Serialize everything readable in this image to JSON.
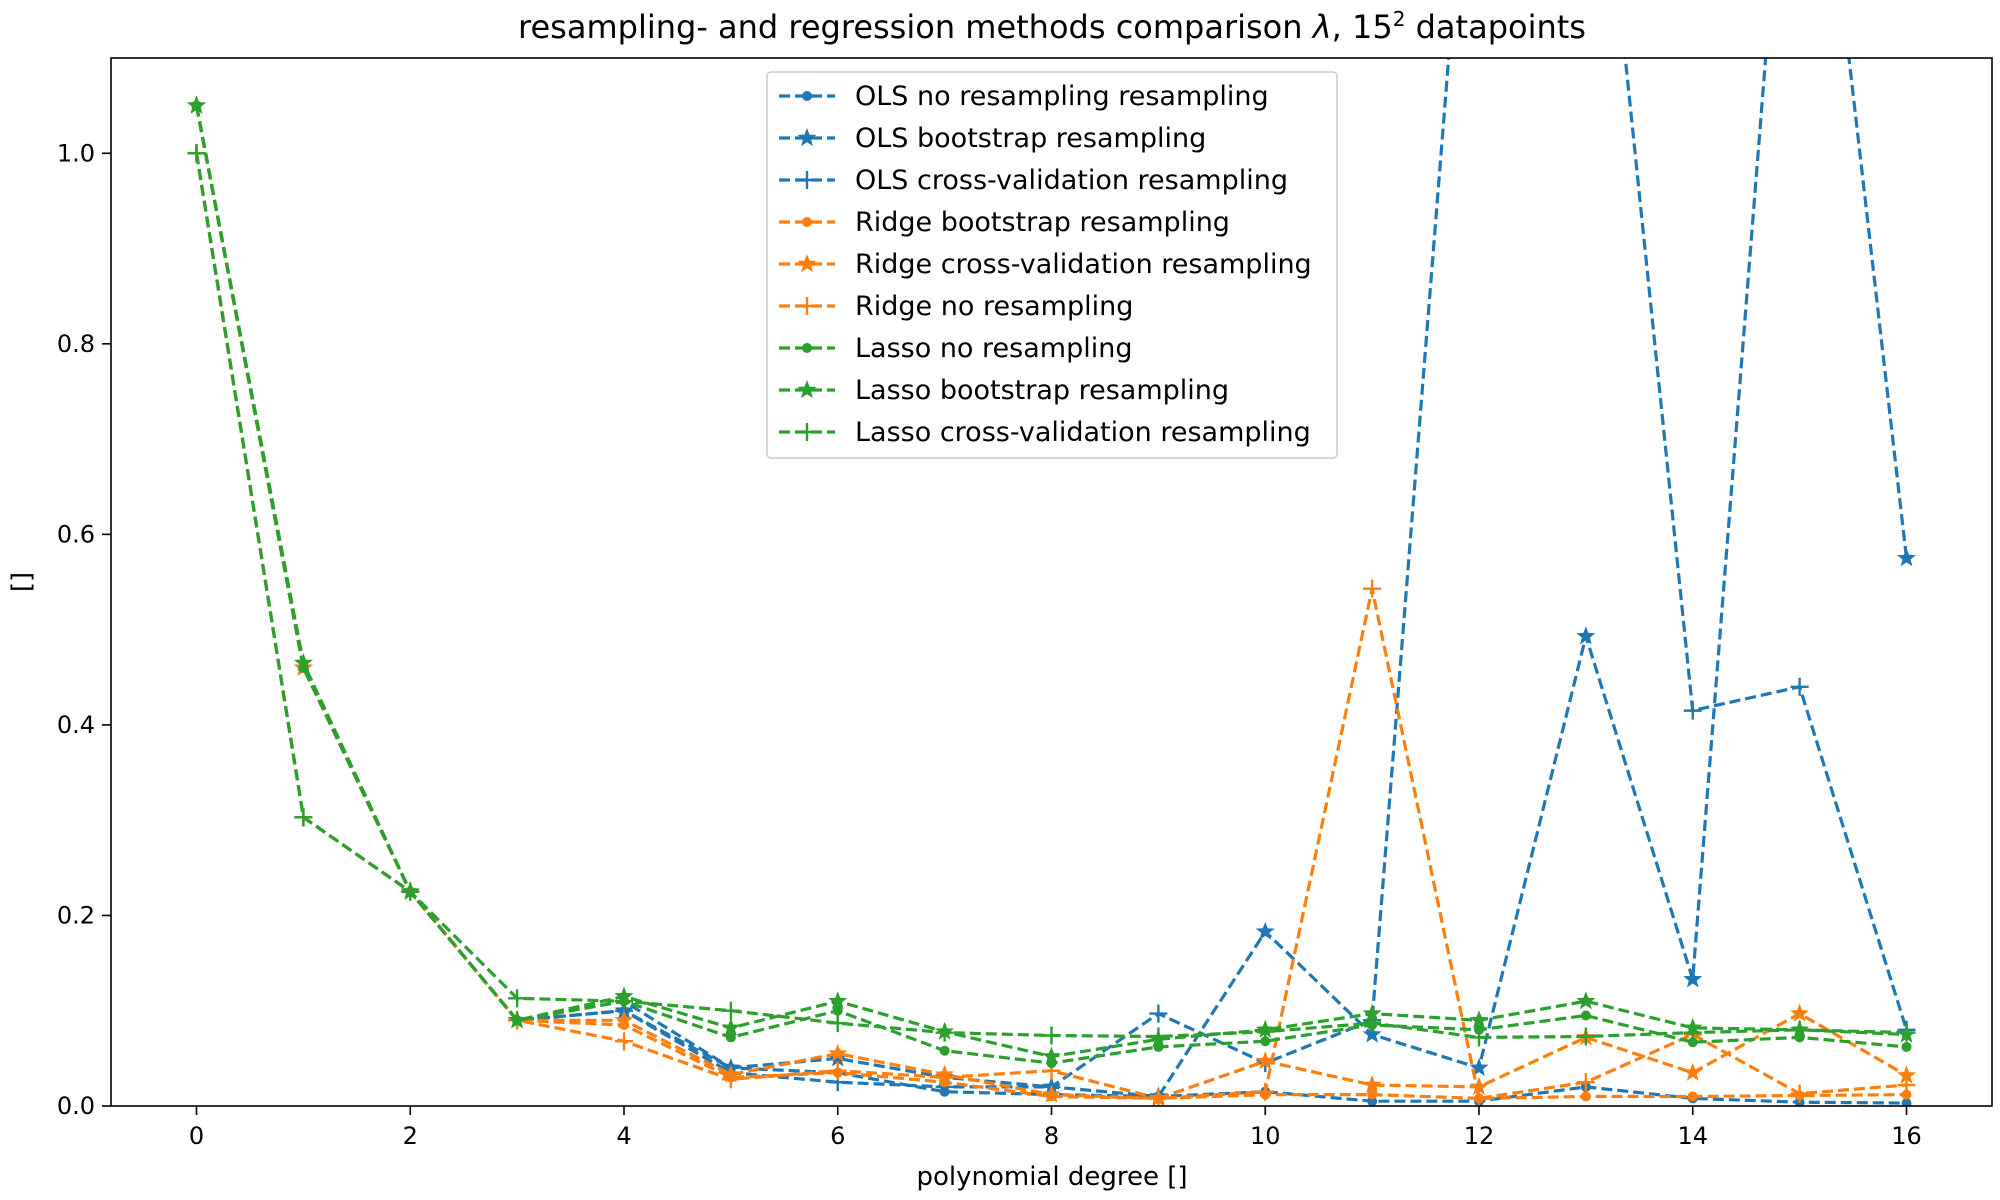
{
  "chart_data": {
    "type": "line",
    "title": "resampling- and regression methods comparison λ, 15² datapoints",
    "title_parts": {
      "main": "resampling- and regression methods comparison ",
      "lambda": "λ",
      "sep": ", 15",
      "sup": "2",
      "tail": " datapoints"
    },
    "xlabel": "polynomial degree []",
    "ylabel": "[]",
    "xlim": [
      -0.8,
      16.8
    ],
    "ylim": [
      0.0,
      1.1
    ],
    "xticks": [
      0,
      2,
      4,
      6,
      8,
      10,
      12,
      14,
      16
    ],
    "xtick_labels": [
      "0",
      "2",
      "4",
      "6",
      "8",
      "10",
      "12",
      "14",
      "16"
    ],
    "yticks": [
      0.0,
      0.2,
      0.4,
      0.6,
      0.8,
      1.0
    ],
    "ytick_labels": [
      "0.0",
      "0.2",
      "0.4",
      "0.6",
      "0.8",
      "1.0"
    ],
    "grid": false,
    "legend_position": "top-center",
    "x": [
      0,
      1,
      2,
      3,
      4,
      5,
      6,
      7,
      8,
      9,
      10,
      11,
      12,
      13,
      14,
      15,
      16
    ],
    "series": [
      {
        "name": "OLS no resampling resampling",
        "color": "#1f77b4",
        "marker": "dot",
        "values": [
          1.05,
          0.46,
          0.225,
          0.09,
          0.11,
          0.04,
          0.035,
          0.015,
          0.012,
          0.01,
          0.015,
          0.005,
          0.005,
          0.02,
          0.008,
          0.004,
          0.003
        ]
      },
      {
        "name": "OLS bootstrap resampling",
        "color": "#1f77b4",
        "marker": "star",
        "values": [
          1.05,
          0.46,
          0.225,
          0.09,
          0.1,
          0.04,
          0.05,
          0.03,
          0.02,
          0.01,
          0.183,
          0.075,
          0.04,
          0.493,
          0.133,
          1.55,
          0.575
        ]
      },
      {
        "name": "OLS cross-validation resampling",
        "color": "#1f77b4",
        "marker": "plus",
        "values": [
          1.0,
          0.303,
          0.225,
          0.09,
          0.1,
          0.035,
          0.025,
          0.02,
          0.02,
          0.097,
          0.045,
          0.09,
          1.5,
          1.5,
          0.415,
          0.44,
          0.08
        ]
      },
      {
        "name": "Ridge bootstrap resampling",
        "color": "#ff7f0e",
        "marker": "dot",
        "values": [
          1.05,
          0.46,
          0.225,
          0.09,
          0.085,
          0.03,
          0.035,
          0.025,
          0.01,
          0.008,
          0.012,
          0.012,
          0.008,
          0.01,
          0.01,
          0.011,
          0.012
        ]
      },
      {
        "name": "Ridge cross-validation resampling",
        "color": "#ff7f0e",
        "marker": "star",
        "values": [
          1.05,
          0.46,
          0.225,
          0.09,
          0.09,
          0.033,
          0.055,
          0.033,
          0.012,
          0.008,
          0.047,
          0.022,
          0.02,
          0.072,
          0.035,
          0.097,
          0.032
        ]
      },
      {
        "name": "Ridge no resampling",
        "color": "#ff7f0e",
        "marker": "plus",
        "values": [
          1.0,
          0.303,
          0.225,
          0.09,
          0.068,
          0.028,
          0.037,
          0.03,
          0.037,
          0.008,
          0.015,
          0.543,
          0.008,
          0.025,
          0.075,
          0.013,
          0.022
        ]
      },
      {
        "name": "Lasso no resampling",
        "color": "#2ca02c",
        "marker": "dot",
        "values": [
          1.05,
          0.46,
          0.225,
          0.09,
          0.11,
          0.072,
          0.1,
          0.058,
          0.045,
          0.062,
          0.068,
          0.085,
          0.08,
          0.095,
          0.067,
          0.072,
          0.062
        ]
      },
      {
        "name": "Lasso bootstrap resampling",
        "color": "#2ca02c",
        "marker": "star",
        "values": [
          1.05,
          0.465,
          0.225,
          0.09,
          0.115,
          0.082,
          0.11,
          0.078,
          0.052,
          0.07,
          0.08,
          0.097,
          0.09,
          0.11,
          0.082,
          0.08,
          0.075
        ]
      },
      {
        "name": "Lasso cross-validation resampling",
        "color": "#2ca02c",
        "marker": "plus",
        "values": [
          1.0,
          0.303,
          0.225,
          0.113,
          0.11,
          0.1,
          0.087,
          0.077,
          0.074,
          0.073,
          0.078,
          0.087,
          0.072,
          0.073,
          0.077,
          0.08,
          0.077
        ]
      }
    ]
  }
}
